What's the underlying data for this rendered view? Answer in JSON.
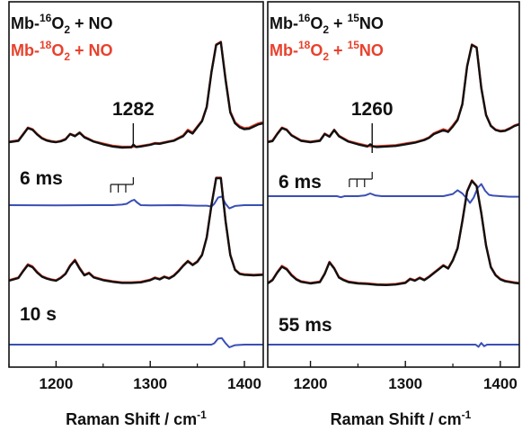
{
  "chart_data": [
    {
      "type": "line",
      "legend": [
        {
          "prefix": "Mb-",
          "sup1": "16",
          "mid": "O",
          "sub": "2",
          "suffix": " + NO",
          "sup2": "",
          "tail": "",
          "color": "#111111"
        },
        {
          "prefix": "Mb-",
          "sup1": "18",
          "mid": "O",
          "sub": "2",
          "suffix": " + NO",
          "sup2": "",
          "tail": "",
          "color": "#e8412c"
        }
      ],
      "xlim": [
        1150,
        1420
      ],
      "x_ticks": [
        1200,
        1300,
        1400
      ],
      "xlabel": "Raman Shift / cm",
      "xlabel_sup": "-1",
      "peak_label": "1282",
      "peak_x": 1282,
      "traces": [
        {
          "name": "top-16",
          "time": "6 ms",
          "color": "#111111",
          "x": [
            1150,
            1160,
            1165,
            1170,
            1175,
            1180,
            1185,
            1190,
            1195,
            1200,
            1205,
            1210,
            1215,
            1220,
            1225,
            1230,
            1235,
            1240,
            1250,
            1260,
            1270,
            1280,
            1282,
            1285,
            1290,
            1300,
            1305,
            1310,
            1320,
            1325,
            1330,
            1335,
            1340,
            1345,
            1350,
            1355,
            1360,
            1365,
            1370,
            1375,
            1380,
            1385,
            1390,
            1395,
            1400,
            1405,
            1410,
            1415,
            1420
          ],
          "y": [
            0.0,
            0.05,
            0.28,
            0.52,
            0.46,
            0.28,
            0.14,
            0.06,
            0.02,
            0.0,
            0.03,
            0.1,
            0.3,
            0.22,
            0.35,
            0.18,
            0.1,
            0.02,
            -0.08,
            -0.16,
            -0.2,
            -0.19,
            -0.09,
            -0.18,
            -0.16,
            -0.1,
            -0.05,
            -0.06,
            0.02,
            0.05,
            0.14,
            0.22,
            0.42,
            0.32,
            0.55,
            0.78,
            1.3,
            2.6,
            3.6,
            3.7,
            2.3,
            1.1,
            0.7,
            0.55,
            0.48,
            0.5,
            0.58,
            0.66,
            0.7
          ]
        },
        {
          "name": "top-18",
          "time": "",
          "color": "#e8412c",
          "x": [
            1150,
            1160,
            1165,
            1170,
            1175,
            1180,
            1185,
            1190,
            1195,
            1200,
            1205,
            1210,
            1215,
            1220,
            1225,
            1230,
            1235,
            1240,
            1250,
            1260,
            1270,
            1280,
            1282,
            1285,
            1290,
            1300,
            1305,
            1310,
            1320,
            1325,
            1330,
            1335,
            1340,
            1345,
            1350,
            1355,
            1360,
            1365,
            1370,
            1375,
            1380,
            1385,
            1390,
            1395,
            1400,
            1405,
            1410,
            1415,
            1420
          ],
          "y": [
            0.02,
            0.07,
            0.3,
            0.54,
            0.48,
            0.3,
            0.16,
            0.08,
            0.04,
            0.01,
            0.05,
            0.12,
            0.31,
            0.24,
            0.36,
            0.2,
            0.12,
            0.03,
            -0.05,
            -0.13,
            -0.17,
            -0.17,
            -0.17,
            -0.17,
            -0.14,
            -0.08,
            -0.03,
            -0.04,
            0.03,
            0.07,
            0.16,
            0.25,
            0.46,
            0.36,
            0.58,
            0.8,
            1.32,
            2.62,
            3.62,
            3.72,
            2.34,
            1.14,
            0.74,
            0.59,
            0.52,
            0.54,
            0.62,
            0.7,
            0.74
          ]
        },
        {
          "name": "diff-6ms",
          "time": "",
          "color": "#3a4fb5",
          "x": [
            1150,
            1200,
            1240,
            1260,
            1270,
            1275,
            1280,
            1283,
            1286,
            1290,
            1300,
            1330,
            1350,
            1360,
            1365,
            1368,
            1372,
            1376,
            1380,
            1384,
            1390,
            1400,
            1420
          ],
          "y": [
            0.0,
            -0.01,
            0.0,
            0.0,
            0.02,
            0.05,
            0.16,
            0.2,
            0.1,
            0.0,
            -0.01,
            0.0,
            -0.02,
            -0.02,
            -0.05,
            0.05,
            0.28,
            0.32,
            0.05,
            -0.12,
            -0.03,
            0.0,
            0.0
          ]
        },
        {
          "name": "bot-16",
          "time": "10 s",
          "color": "#111111",
          "x": [
            1150,
            1160,
            1165,
            1170,
            1175,
            1180,
            1185,
            1190,
            1195,
            1200,
            1205,
            1210,
            1215,
            1220,
            1225,
            1230,
            1235,
            1240,
            1250,
            1260,
            1270,
            1280,
            1290,
            1300,
            1305,
            1310,
            1315,
            1320,
            1325,
            1330,
            1335,
            1340,
            1345,
            1350,
            1355,
            1360,
            1365,
            1370,
            1375,
            1380,
            1385,
            1390,
            1395,
            1400,
            1410,
            1420
          ],
          "y": [
            0.0,
            0.1,
            0.35,
            0.58,
            0.5,
            0.3,
            0.15,
            0.08,
            0.03,
            0.0,
            0.1,
            0.25,
            0.55,
            0.75,
            0.45,
            0.2,
            0.28,
            0.12,
            0.02,
            -0.04,
            -0.08,
            -0.08,
            -0.06,
            0.02,
            0.1,
            0.05,
            0.14,
            0.08,
            0.18,
            0.35,
            0.55,
            0.72,
            0.58,
            0.7,
            0.95,
            1.6,
            2.8,
            3.8,
            3.8,
            2.2,
            0.95,
            0.4,
            0.25,
            0.22,
            0.2,
            0.22
          ]
        },
        {
          "name": "bot-18",
          "time": "",
          "color": "#e8412c",
          "x": [
            1150,
            1160,
            1165,
            1170,
            1175,
            1180,
            1185,
            1190,
            1195,
            1200,
            1205,
            1210,
            1215,
            1220,
            1225,
            1230,
            1235,
            1240,
            1250,
            1260,
            1270,
            1280,
            1290,
            1300,
            1305,
            1310,
            1315,
            1320,
            1325,
            1330,
            1335,
            1340,
            1345,
            1350,
            1355,
            1360,
            1365,
            1370,
            1375,
            1380,
            1385,
            1390,
            1395,
            1400,
            1410,
            1420
          ],
          "y": [
            0.02,
            0.12,
            0.37,
            0.61,
            0.53,
            0.33,
            0.17,
            0.1,
            0.05,
            0.02,
            0.12,
            0.27,
            0.57,
            0.78,
            0.48,
            0.22,
            0.3,
            0.14,
            0.04,
            -0.02,
            -0.06,
            -0.06,
            -0.04,
            0.04,
            0.12,
            0.07,
            0.16,
            0.1,
            0.2,
            0.37,
            0.57,
            0.74,
            0.6,
            0.72,
            0.97,
            1.62,
            2.82,
            3.82,
            3.82,
            2.22,
            0.97,
            0.42,
            0.27,
            0.24,
            0.22,
            0.24
          ]
        },
        {
          "name": "diff-10s",
          "time": "",
          "color": "#3a4fb5",
          "x": [
            1150,
            1200,
            1250,
            1300,
            1350,
            1360,
            1365,
            1368,
            1372,
            1376,
            1380,
            1384,
            1390,
            1400,
            1420
          ],
          "y": [
            0.0,
            0.0,
            0.0,
            0.0,
            0.0,
            0.0,
            0.0,
            0.05,
            0.22,
            0.24,
            0.05,
            -0.1,
            -0.02,
            0.0,
            0.0
          ]
        }
      ]
    },
    {
      "type": "line",
      "legend": [
        {
          "prefix": "Mb-",
          "sup1": "16",
          "mid": "O",
          "sub": "2",
          "suffix": " + ",
          "sup2": "15",
          "tail": "NO",
          "color": "#111111"
        },
        {
          "prefix": "Mb-",
          "sup1": "18",
          "mid": "O",
          "sub": "2",
          "suffix": " + ",
          "sup2": "15",
          "tail": "NO",
          "color": "#e8412c"
        }
      ],
      "xlim": [
        1155,
        1420
      ],
      "x_ticks": [
        1200,
        1300,
        1400
      ],
      "xlabel": "Raman Shift / cm",
      "xlabel_sup": "-1",
      "peak_label": "1260",
      "peak_x": 1265,
      "traces": [
        {
          "name": "top-16",
          "time": "6 ms",
          "color": "#111111",
          "x": [
            1155,
            1160,
            1165,
            1170,
            1175,
            1180,
            1185,
            1190,
            1200,
            1210,
            1215,
            1220,
            1225,
            1230,
            1235,
            1240,
            1250,
            1260,
            1263,
            1266,
            1270,
            1280,
            1290,
            1300,
            1310,
            1320,
            1325,
            1330,
            1340,
            1345,
            1350,
            1355,
            1360,
            1365,
            1370,
            1375,
            1380,
            1385,
            1390,
            1395,
            1400,
            1405,
            1410,
            1415,
            1420
          ],
          "y": [
            0.0,
            0.04,
            0.3,
            0.52,
            0.45,
            0.25,
            0.15,
            0.05,
            0.0,
            0.05,
            0.3,
            0.2,
            0.45,
            0.22,
            0.12,
            0.02,
            -0.08,
            -0.16,
            -0.08,
            -0.16,
            -0.18,
            -0.16,
            -0.14,
            -0.08,
            -0.02,
            0.08,
            0.16,
            0.3,
            0.44,
            0.38,
            0.58,
            0.82,
            1.4,
            2.8,
            3.6,
            3.5,
            2.0,
            1.0,
            0.6,
            0.45,
            0.4,
            0.42,
            0.5,
            0.6,
            0.66
          ]
        },
        {
          "name": "top-18",
          "time": "",
          "color": "#e8412c",
          "x": [
            1155,
            1160,
            1165,
            1170,
            1175,
            1180,
            1185,
            1190,
            1200,
            1210,
            1215,
            1220,
            1225,
            1230,
            1235,
            1240,
            1250,
            1260,
            1263,
            1266,
            1270,
            1280,
            1290,
            1300,
            1310,
            1320,
            1325,
            1330,
            1340,
            1345,
            1350,
            1355,
            1360,
            1365,
            1370,
            1375,
            1380,
            1385,
            1390,
            1395,
            1400,
            1405,
            1410,
            1415,
            1420
          ],
          "y": [
            0.02,
            0.06,
            0.32,
            0.54,
            0.47,
            0.27,
            0.17,
            0.07,
            0.02,
            0.07,
            0.32,
            0.22,
            0.46,
            0.24,
            0.14,
            0.04,
            -0.05,
            -0.13,
            -0.15,
            -0.15,
            -0.15,
            -0.13,
            -0.11,
            -0.05,
            0.0,
            0.1,
            0.18,
            0.33,
            0.48,
            0.42,
            0.62,
            0.85,
            1.42,
            2.82,
            3.62,
            3.52,
            2.02,
            1.02,
            0.62,
            0.47,
            0.42,
            0.44,
            0.52,
            0.62,
            0.68
          ]
        },
        {
          "name": "diff-6ms",
          "time": "",
          "color": "#3a4fb5",
          "x": [
            1155,
            1200,
            1228,
            1232,
            1236,
            1250,
            1258,
            1263,
            1268,
            1275,
            1300,
            1340,
            1350,
            1355,
            1360,
            1365,
            1368,
            1372,
            1376,
            1380,
            1384,
            1388,
            1392,
            1400,
            1410,
            1420
          ],
          "y": [
            0.0,
            0.0,
            0.0,
            -0.04,
            0.0,
            0.0,
            0.03,
            0.1,
            0.03,
            0.0,
            0.0,
            0.0,
            0.08,
            0.22,
            0.1,
            -0.1,
            -0.25,
            -0.05,
            0.3,
            0.45,
            0.2,
            0.05,
            0.02,
            0.0,
            -0.02,
            -0.02
          ]
        },
        {
          "name": "bot-16",
          "time": "55 ms",
          "color": "#111111",
          "x": [
            1155,
            1160,
            1165,
            1170,
            1175,
            1180,
            1185,
            1190,
            1200,
            1210,
            1215,
            1220,
            1225,
            1230,
            1235,
            1240,
            1250,
            1260,
            1270,
            1280,
            1290,
            1300,
            1305,
            1310,
            1315,
            1320,
            1325,
            1330,
            1335,
            1340,
            1345,
            1350,
            1355,
            1360,
            1365,
            1370,
            1375,
            1380,
            1385,
            1390,
            1395,
            1400,
            1405,
            1410,
            1415,
            1420
          ],
          "y": [
            0.0,
            0.12,
            0.4,
            0.62,
            0.52,
            0.3,
            0.15,
            0.06,
            0.0,
            0.05,
            0.35,
            0.78,
            0.55,
            0.22,
            0.12,
            0.05,
            0.0,
            -0.02,
            -0.05,
            -0.06,
            -0.04,
            0.02,
            0.16,
            0.1,
            0.2,
            0.12,
            0.24,
            0.38,
            0.52,
            0.66,
            0.55,
            0.85,
            1.3,
            2.3,
            3.4,
            3.8,
            3.6,
            2.6,
            1.4,
            0.6,
            0.3,
            0.15,
            0.08,
            0.05,
            0.02,
            0.0
          ]
        },
        {
          "name": "bot-18",
          "time": "",
          "color": "#e8412c",
          "x": [
            1155,
            1160,
            1165,
            1170,
            1175,
            1180,
            1185,
            1190,
            1200,
            1210,
            1215,
            1220,
            1225,
            1230,
            1235,
            1240,
            1250,
            1260,
            1270,
            1280,
            1290,
            1300,
            1305,
            1310,
            1315,
            1320,
            1325,
            1330,
            1335,
            1340,
            1345,
            1350,
            1355,
            1360,
            1365,
            1370,
            1375,
            1380,
            1385,
            1390,
            1395,
            1400,
            1405,
            1410,
            1415,
            1420
          ],
          "y": [
            0.02,
            0.14,
            0.42,
            0.65,
            0.55,
            0.33,
            0.17,
            0.08,
            0.02,
            0.07,
            0.37,
            0.8,
            0.57,
            0.24,
            0.14,
            0.07,
            0.02,
            0.0,
            -0.03,
            -0.04,
            -0.02,
            0.04,
            0.18,
            0.12,
            0.22,
            0.14,
            0.26,
            0.4,
            0.54,
            0.68,
            0.57,
            0.87,
            1.32,
            2.32,
            3.42,
            3.82,
            3.62,
            2.62,
            1.42,
            0.62,
            0.32,
            0.17,
            0.1,
            0.07,
            0.04,
            0.02
          ]
        },
        {
          "name": "diff-55ms",
          "time": "",
          "color": "#3a4fb5",
          "x": [
            1155,
            1200,
            1250,
            1300,
            1350,
            1370,
            1374,
            1377,
            1380,
            1383,
            1386,
            1390,
            1400,
            1420
          ],
          "y": [
            0.0,
            0.0,
            0.0,
            0.0,
            0.0,
            0.0,
            0.0,
            -0.08,
            0.06,
            -0.06,
            0.0,
            0.0,
            0.0,
            0.0
          ]
        }
      ]
    }
  ]
}
